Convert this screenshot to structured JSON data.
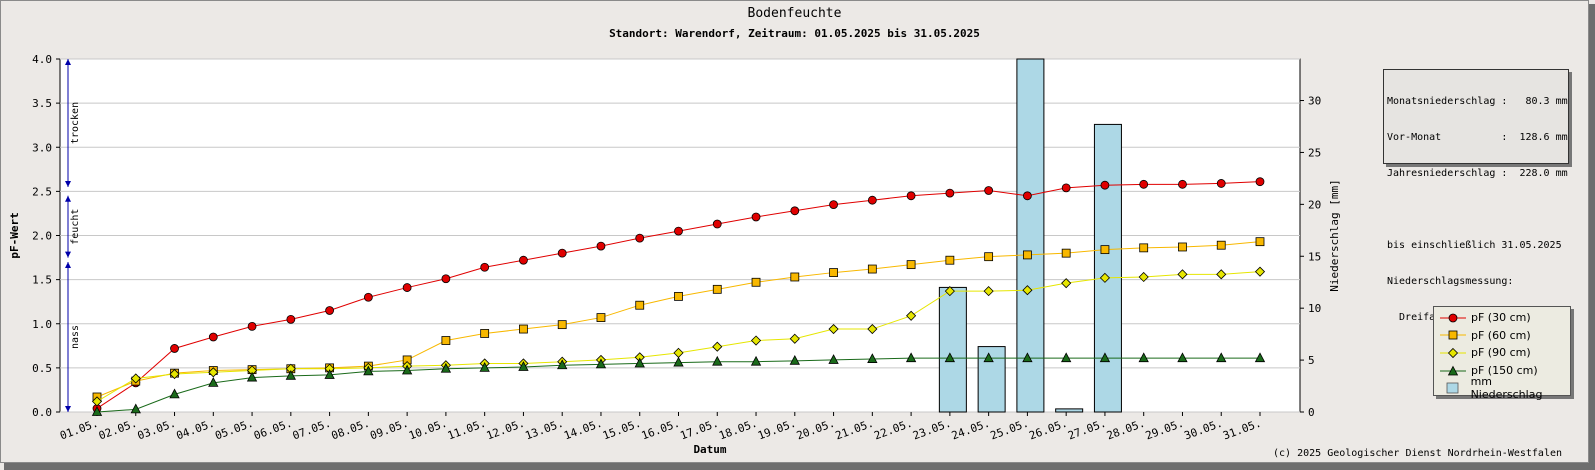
{
  "title": "Bodenfeuchte",
  "subtitle": "Standort: Warendorf, Zeitraum: 01.05.2025 bis 31.05.2025",
  "info_box": {
    "lines": [
      "Monatsniederschlag :   80.3 mm",
      "Vor-Monat          :  128.6 mm",
      "Jahresniederschlag :  228.0 mm",
      "",
      "bis einschließlich 31.05.2025",
      "Niederschlagsmessung:",
      "  Dreifachkippwaage, Mittelung"
    ]
  },
  "copyright": "(c) 2025 Geologischer Dienst Nordrhein-Westfalen",
  "zones": [
    {
      "label": "trocken",
      "from": 2.55,
      "to": 4.0
    },
    {
      "label": "feucht",
      "from": 1.75,
      "to": 2.45
    },
    {
      "label": "nass",
      "from": 0.0,
      "to": 1.7
    }
  ],
  "colors": {
    "pf30": "#e00000",
    "pf60": "#f8b800",
    "pf90": "#e6e600",
    "pf150": "#1a6a1a",
    "bar": "#add8e6",
    "zone_arrow": "#0000aa"
  },
  "chart_data": {
    "type": "line",
    "categories": [
      "01.05.",
      "02.05.",
      "03.05.",
      "04.05.",
      "05.05.",
      "06.05.",
      "07.05.",
      "08.05.",
      "09.05.",
      "10.05.",
      "11.05.",
      "12.05.",
      "13.05.",
      "14.05.",
      "15.05.",
      "16.05.",
      "17.05.",
      "18.05.",
      "19.05.",
      "20.05.",
      "21.05.",
      "22.05.",
      "23.05.",
      "24.05.",
      "25.05.",
      "26.05.",
      "27.05.",
      "28.05.",
      "29.05.",
      "30.05.",
      "31.05."
    ],
    "xlabel": "Datum",
    "ylabel": "pF-Wert",
    "ylabel_right": "Niederschlag [mm]",
    "ylim": [
      0,
      4.0
    ],
    "yticks": [
      "0.0",
      "0.5",
      "1.0",
      "1.5",
      "2.0",
      "2.5",
      "3.0",
      "3.5",
      "4.0"
    ],
    "ylim_right": [
      0,
      34
    ],
    "yticks_right": [
      "0",
      "5",
      "10",
      "15",
      "20",
      "25",
      "30"
    ],
    "grid": true,
    "legend": "bottom-right",
    "series": [
      {
        "name": "pF (30 cm)",
        "marker": "circle",
        "color": "#e00000",
        "values": [
          0.04,
          0.33,
          0.72,
          0.85,
          0.97,
          1.05,
          1.15,
          1.3,
          1.41,
          1.51,
          1.64,
          1.72,
          1.8,
          1.88,
          1.97,
          2.05,
          2.13,
          2.21,
          2.28,
          2.35,
          2.4,
          2.45,
          2.48,
          2.51,
          2.45,
          2.54,
          2.57,
          2.58,
          2.58,
          2.59,
          2.61
        ]
      },
      {
        "name": "pF (60 cm)",
        "marker": "square",
        "color": "#f8b800",
        "values": [
          0.17,
          0.35,
          0.44,
          0.47,
          0.48,
          0.49,
          0.5,
          0.52,
          0.59,
          0.81,
          0.89,
          0.94,
          0.99,
          1.07,
          1.21,
          1.31,
          1.39,
          1.47,
          1.53,
          1.58,
          1.62,
          1.67,
          1.72,
          1.76,
          1.78,
          1.8,
          1.84,
          1.86,
          1.87,
          1.89,
          1.93
        ]
      },
      {
        "name": "pF (90 cm)",
        "marker": "diamond",
        "color": "#e6e600",
        "values": [
          0.12,
          0.38,
          0.43,
          0.45,
          0.47,
          0.49,
          0.49,
          0.5,
          0.52,
          0.53,
          0.55,
          0.55,
          0.57,
          0.59,
          0.62,
          0.67,
          0.74,
          0.81,
          0.83,
          0.94,
          0.94,
          1.09,
          1.37,
          1.37,
          1.38,
          1.46,
          1.52,
          1.53,
          1.56,
          1.56,
          1.59
        ]
      },
      {
        "name": "pF (150 cm)",
        "marker": "triangle",
        "color": "#1a6a1a",
        "values": [
          0.0,
          0.03,
          0.2,
          0.33,
          0.39,
          0.41,
          0.42,
          0.46,
          0.47,
          0.49,
          0.5,
          0.51,
          0.53,
          0.54,
          0.55,
          0.56,
          0.57,
          0.57,
          0.58,
          0.59,
          0.6,
          0.61,
          0.61,
          0.61,
          0.61,
          0.61,
          0.61,
          0.61,
          0.61,
          0.61,
          0.61
        ]
      },
      {
        "name": "mm  Niederschlag",
        "type": "bar",
        "axis": "right",
        "color": "#add8e6",
        "values": [
          0,
          0,
          0,
          0,
          0,
          0,
          0,
          0,
          0,
          0,
          0,
          0,
          0,
          0,
          0,
          0,
          0,
          0,
          0,
          0,
          0,
          0,
          12.0,
          6.3,
          34.0,
          0.3,
          27.7,
          0,
          0,
          0,
          0
        ]
      }
    ]
  }
}
